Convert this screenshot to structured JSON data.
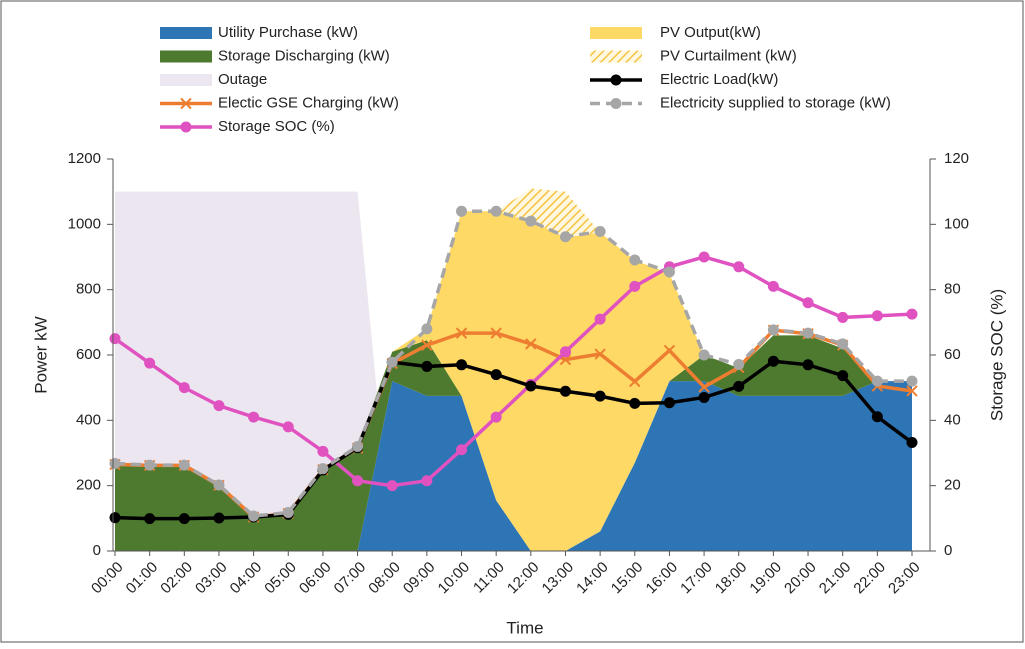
{
  "chart_data": {
    "type": "combo",
    "x_label": "Time",
    "y_label": "Power kW",
    "y2_label": "Storage SOC (%)",
    "categories": [
      "00:00",
      "01:00",
      "02:00",
      "03:00",
      "04:00",
      "05:00",
      "06:00",
      "07:00",
      "08:00",
      "09:00",
      "10:00",
      "11:00",
      "12:00",
      "13:00",
      "14:00",
      "15:00",
      "16:00",
      "17:00",
      "18:00",
      "19:00",
      "20:00",
      "21:00",
      "22:00",
      "23:00"
    ],
    "ylim": [
      0,
      1200
    ],
    "yticks": [
      0,
      200,
      400,
      600,
      800,
      1000,
      1200
    ],
    "y2lim": [
      0,
      120
    ],
    "y2ticks": [
      0,
      20,
      40,
      60,
      80,
      100,
      120
    ],
    "series": [
      {
        "name": "Utility Purchase (kW)",
        "kind": "area",
        "stacked": true,
        "color": "#2e75b6",
        "values": [
          0,
          0,
          0,
          0,
          0,
          0,
          0,
          0,
          520,
          475,
          475,
          155,
          0,
          0,
          60,
          270,
          520,
          520,
          475,
          475,
          475,
          475,
          520,
          520
        ]
      },
      {
        "name": "Storage Discharging (kW)",
        "kind": "area",
        "stacked": true,
        "color": "#4e7a2f",
        "values": [
          260,
          260,
          260,
          200,
          100,
          110,
          245,
          320,
          90,
          170,
          0,
          0,
          0,
          0,
          0,
          0,
          0,
          80,
          85,
          185,
          185,
          145,
          0,
          0
        ]
      },
      {
        "name": "Outage",
        "kind": "area",
        "stacked": false,
        "color": "#ece6f0",
        "values": [
          1100,
          1100,
          1100,
          1100,
          1100,
          1100,
          1100,
          1100,
          0,
          0,
          0,
          0,
          0,
          0,
          0,
          0,
          0,
          0,
          0,
          0,
          0,
          0,
          0,
          0
        ]
      },
      {
        "name": "Electic GSE Charging (kW)",
        "kind": "line",
        "marker": "x",
        "color": "#ed7d31",
        "values": [
          265,
          262,
          262,
          201,
          104,
          115,
          249,
          315,
          574,
          630,
          667,
          667,
          634,
          586,
          603,
          519,
          614,
          502,
          562,
          676,
          665,
          630,
          505,
          490
        ]
      },
      {
        "name": "Storage SOC (%)",
        "kind": "line",
        "marker": "circle",
        "axis": "y2",
        "color": "#e052c0",
        "values": [
          65,
          57.5,
          50,
          44.5,
          41,
          38,
          30.5,
          21.5,
          20,
          21.5,
          31,
          41,
          51,
          61,
          71,
          81,
          87,
          90,
          87,
          81,
          76,
          71.5,
          72,
          72.5
        ]
      },
      {
        "name": "PV Output(kW)",
        "kind": "area",
        "stacked": true,
        "color": "#ffd966",
        "values": [
          0,
          0,
          0,
          0,
          0,
          0,
          0,
          0,
          0,
          35,
          565,
          885,
          1010,
          960,
          915,
          620,
          330,
          0,
          0,
          0,
          0,
          0,
          0,
          0
        ]
      },
      {
        "name": "PV Curtailment (kW)",
        "kind": "area",
        "stacked": true,
        "hatch": true,
        "color": "#f5c242",
        "values": [
          0,
          0,
          0,
          0,
          0,
          0,
          0,
          0,
          0,
          0,
          0,
          0,
          100,
          140,
          0,
          0,
          0,
          0,
          0,
          0,
          0,
          0,
          0,
          0
        ]
      },
      {
        "name": "Electric Load(kW)",
        "kind": "line",
        "marker": "circle",
        "color": "#000000",
        "values": [
          102,
          99,
          99,
          101,
          104,
          112,
          248,
          316,
          578,
          565,
          570,
          540,
          505,
          489,
          474,
          452,
          454,
          470,
          504,
          581,
          570,
          537,
          411,
          332
        ]
      },
      {
        "name": "Electricity supplied to storage (kW)",
        "kind": "line",
        "marker": "circle",
        "dashed": true,
        "color": "#a6a6a6",
        "values": [
          268,
          263,
          263,
          202,
          107,
          118,
          252,
          320,
          578,
          680,
          1040,
          1040,
          1010,
          962,
          978,
          891,
          854,
          600,
          571,
          677,
          667,
          634,
          520,
          520
        ]
      }
    ]
  }
}
